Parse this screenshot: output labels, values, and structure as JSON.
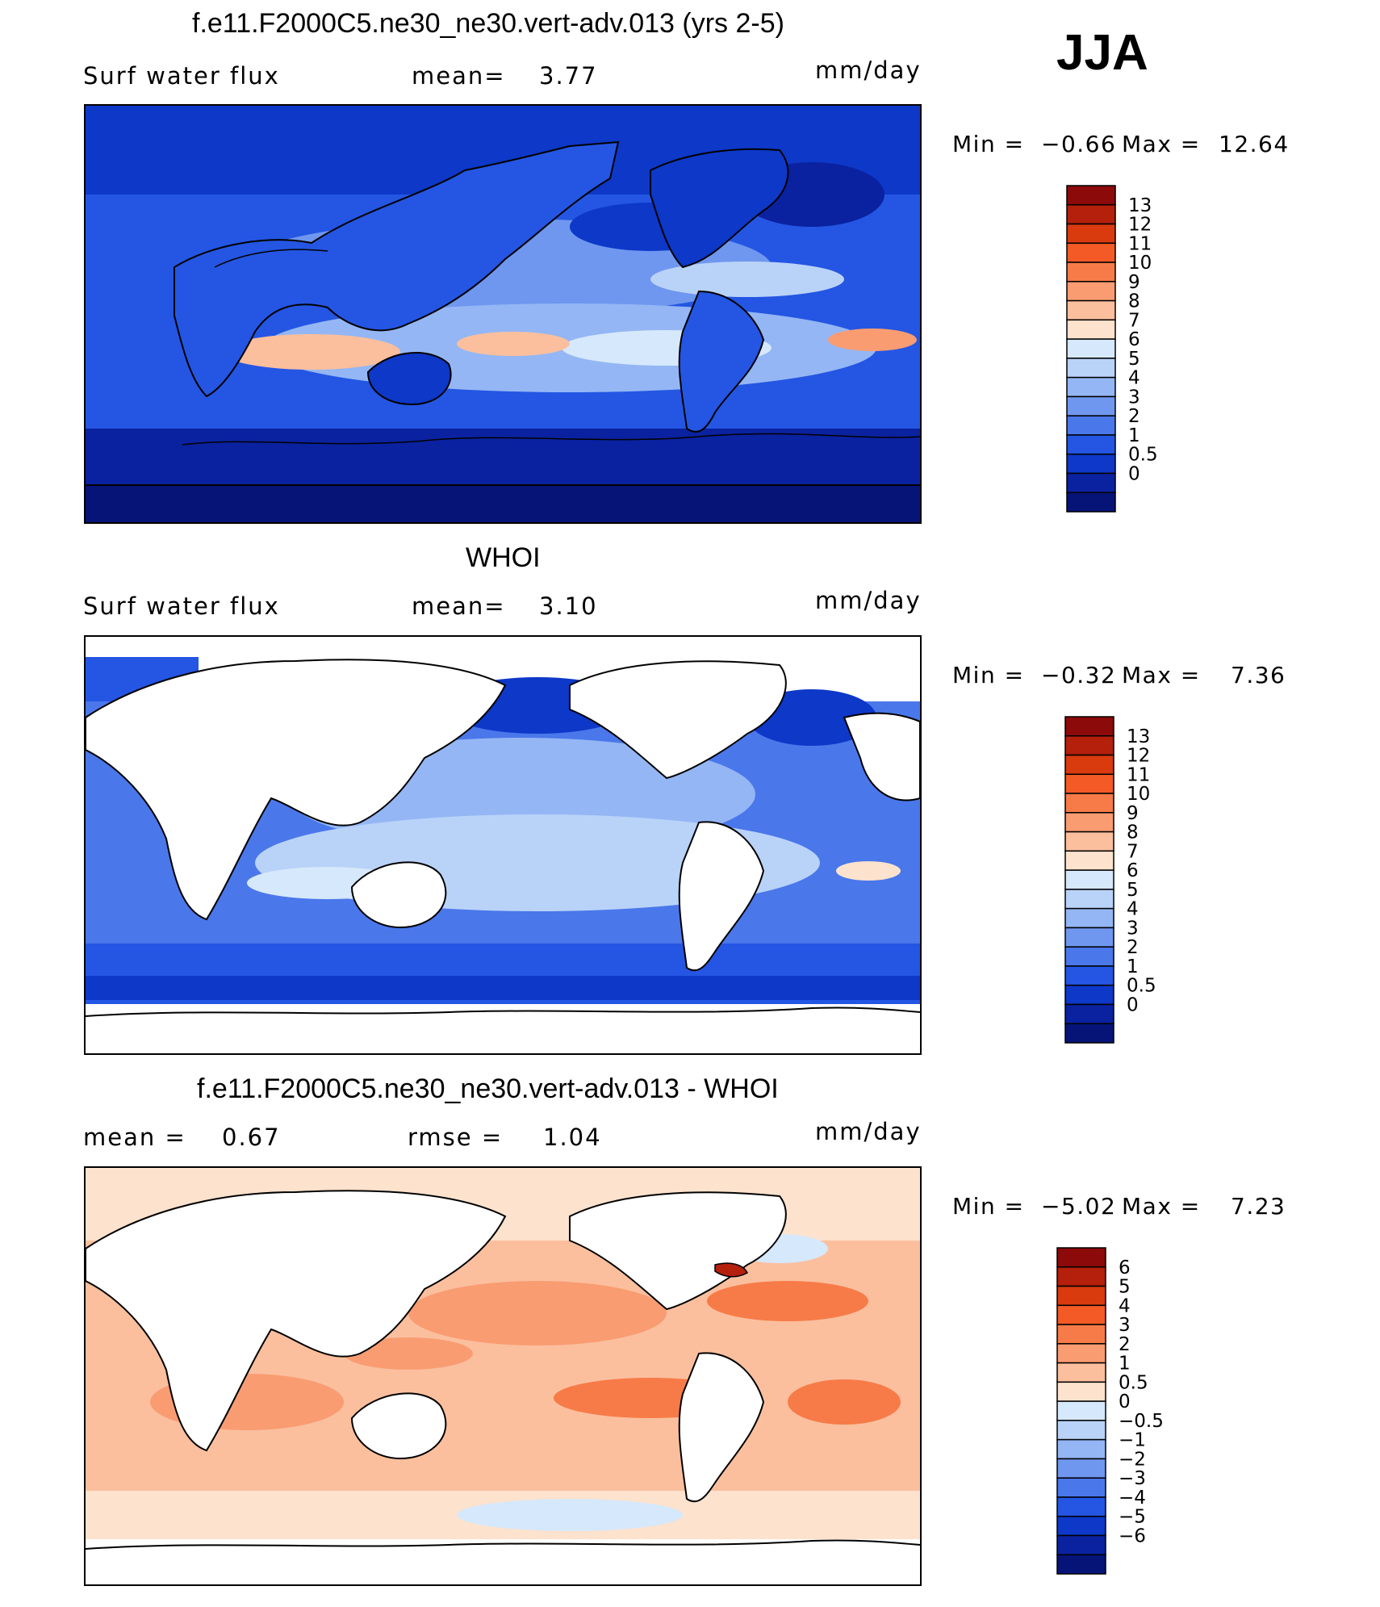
{
  "header": {
    "season": "JJA"
  },
  "panels": [
    {
      "title": "f.e11.F2000C5.ne30_ne30.vert-adv.013 (yrs 2-5)",
      "left_text": "Surf water flux",
      "center_label": "mean=",
      "center_value": "3.77",
      "units": "mm/day",
      "min_label": "Min =",
      "min_value": "−0.66",
      "max_label": "Max =",
      "max_value": "12.64",
      "colorbar": {
        "labels": [
          "13",
          "12",
          "11",
          "10",
          "9",
          "8",
          "7",
          "6",
          "5",
          "4",
          "3",
          "2",
          "1",
          "0.5",
          "0"
        ],
        "colors": [
          "#8c0a0a",
          "#b4200c",
          "#d93a0e",
          "#f35a25",
          "#f77b48",
          "#f99c72",
          "#fbbf9e",
          "#fde2cd",
          "#d6e8fb",
          "#b9d2f8",
          "#94b6f4",
          "#6f97ef",
          "#4a77ea",
          "#2456e3",
          "#0d38c8",
          "#0a22a0",
          "#061478"
        ]
      }
    },
    {
      "title": "WHOI",
      "left_text": "Surf water flux",
      "center_label": "mean=",
      "center_value": "3.10",
      "units": "mm/day",
      "min_label": "Min =",
      "min_value": "−0.32",
      "max_label": "Max =",
      "max_value": "7.36",
      "colorbar": {
        "labels": [
          "13",
          "12",
          "11",
          "10",
          "9",
          "8",
          "7",
          "6",
          "5",
          "4",
          "3",
          "2",
          "1",
          "0.5",
          "0"
        ],
        "colors": [
          "#8c0a0a",
          "#b4200c",
          "#d93a0e",
          "#f35a25",
          "#f77b48",
          "#f99c72",
          "#fbbf9e",
          "#fde2cd",
          "#d6e8fb",
          "#b9d2f8",
          "#94b6f4",
          "#6f97ef",
          "#4a77ea",
          "#2456e3",
          "#0d38c8",
          "#0a22a0",
          "#061478"
        ]
      }
    },
    {
      "title": "f.e11.F2000C5.ne30_ne30.vert-adv.013 - WHOI",
      "left_label": "mean =",
      "left_value": "0.67",
      "center_label": "rmse =",
      "center_value": "1.04",
      "units": "mm/day",
      "min_label": "Min =",
      "min_value": "−5.02",
      "max_label": "Max =",
      "max_value": "7.23",
      "colorbar": {
        "labels": [
          "6",
          "5",
          "4",
          "3",
          "2",
          "1",
          "0.5",
          "0",
          "−0.5",
          "−1",
          "−2",
          "−3",
          "−4",
          "−5",
          "−6"
        ],
        "colors": [
          "#8c0a0a",
          "#b4200c",
          "#d93a0e",
          "#f35a25",
          "#f77b48",
          "#f99c72",
          "#fbbf9e",
          "#fde2cd",
          "#d6e8fb",
          "#b9d2f8",
          "#94b6f4",
          "#6f97ef",
          "#4a77ea",
          "#2456e3",
          "#0d38c8",
          "#0a22a0",
          "#061478"
        ]
      }
    }
  ],
  "map_colors": {
    "ocean_deep": "#061478",
    "ocean_mid": "#2456e3",
    "ocean_light": "#94b6f4",
    "ocean_pale": "#d6e8fb",
    "warm_pale": "#fde2cd",
    "warm_mid": "#f99c72",
    "warm_strong": "#f35a25",
    "land_model": "#2456e3",
    "land_blank": "#ffffff"
  }
}
